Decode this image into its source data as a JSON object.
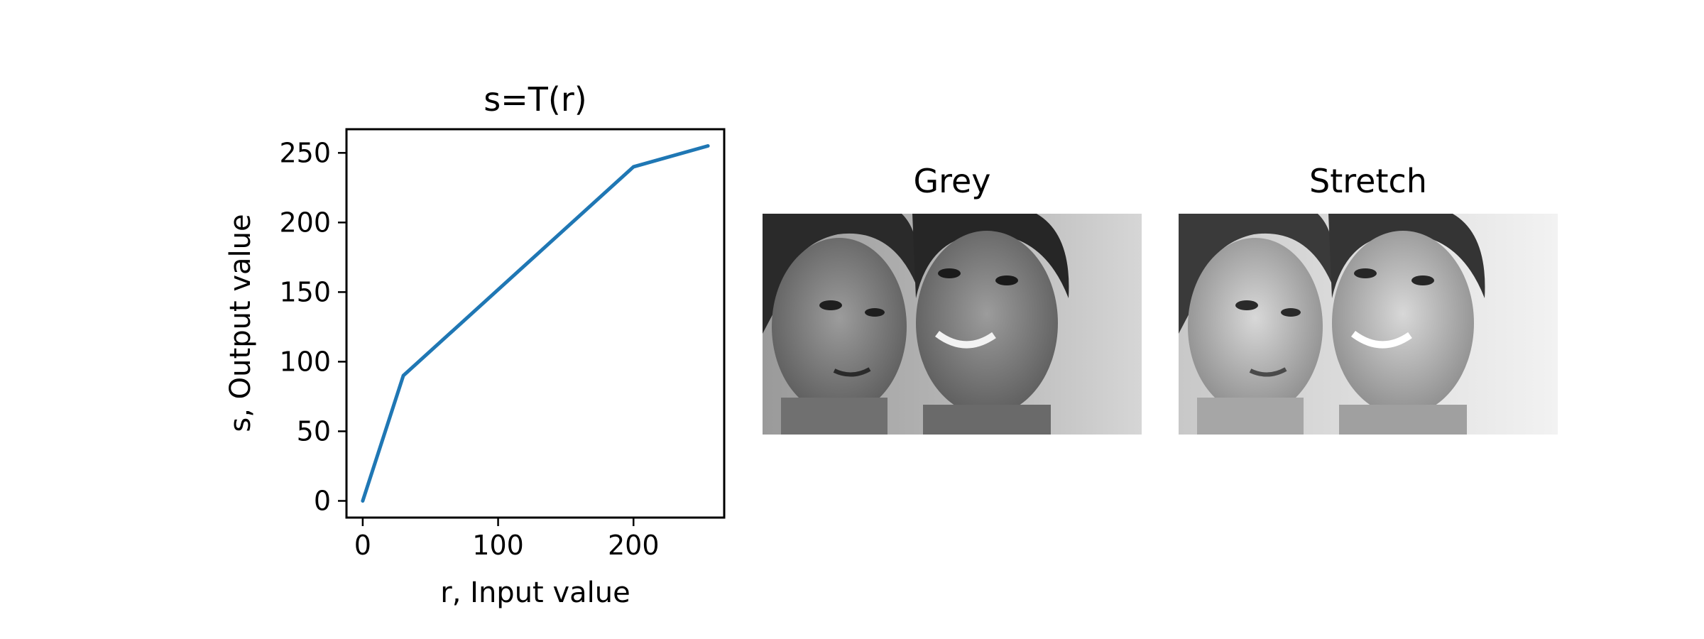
{
  "chart_data": [
    {
      "type": "line",
      "title": "s=T(r)",
      "xlabel": "r, Input value",
      "ylabel": "s, Output value",
      "xlim": [
        -12,
        267
      ],
      "ylim": [
        -12,
        267
      ],
      "xticks": [
        0,
        100,
        200
      ],
      "yticks": [
        0,
        50,
        100,
        150,
        200,
        250
      ],
      "grid": false,
      "series": [
        {
          "color": "#1f77b4",
          "x": [
            0,
            30,
            200,
            255
          ],
          "y": [
            0,
            90,
            240,
            255
          ]
        }
      ]
    },
    {
      "type": "image",
      "title": "Grey"
    },
    {
      "type": "image",
      "title": "Stretch"
    }
  ]
}
